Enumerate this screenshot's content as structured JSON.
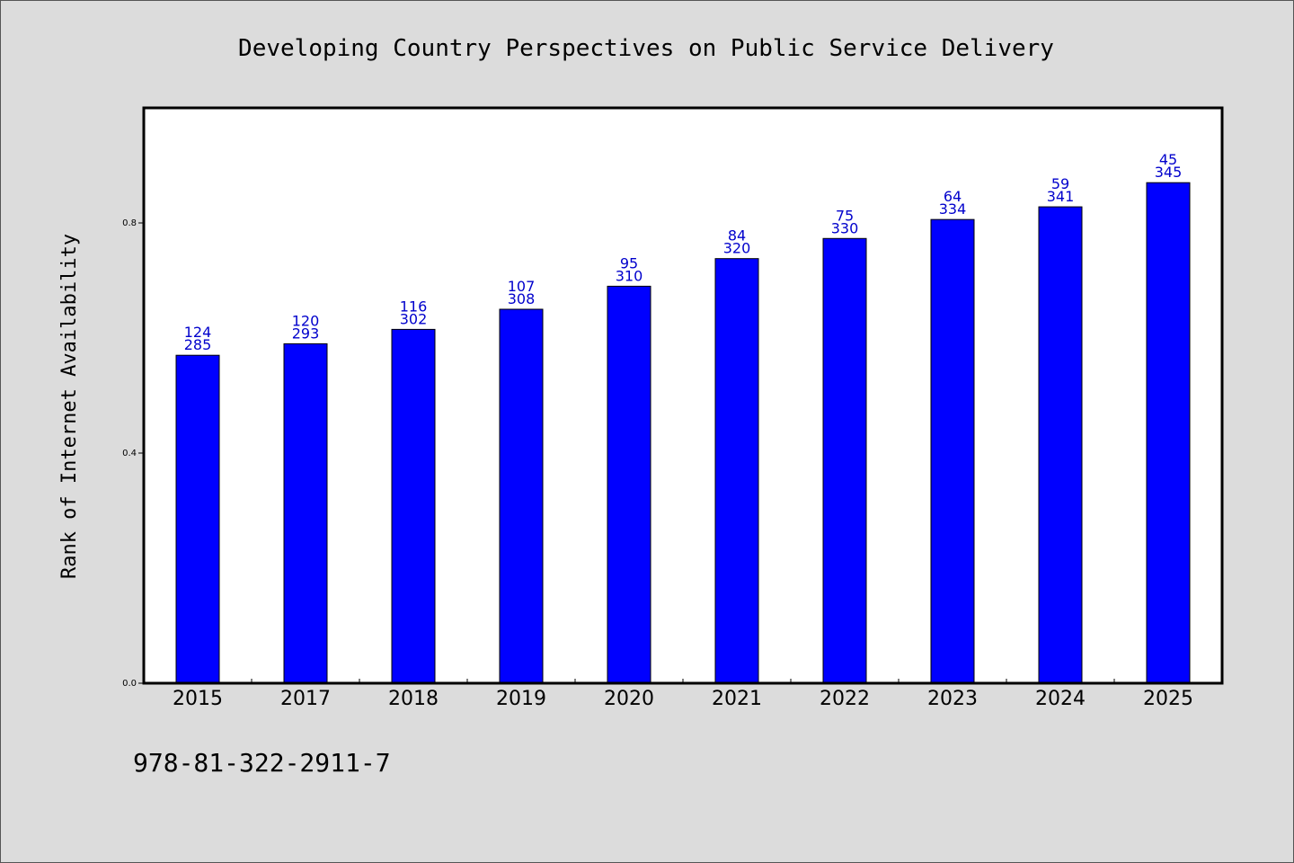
{
  "colors": {
    "background": "#dcdcdc",
    "plot_background": "#ffffff",
    "bar": "#0000ff",
    "bar_edge": "#000000",
    "data_label": "#0000cc"
  },
  "footer": {
    "isbn": "978-81-322-2911-7"
  },
  "chart_data": {
    "type": "bar",
    "title": "Developing Country Perspectives on Public Service Delivery",
    "xlabel": "",
    "ylabel": "Rank of Internet Availability",
    "categories": [
      "2015",
      "2017",
      "2018",
      "2019",
      "2020",
      "2021",
      "2022",
      "2023",
      "2024",
      "2025"
    ],
    "values": [
      0.57,
      0.59,
      0.615,
      0.65,
      0.69,
      0.738,
      0.773,
      0.806,
      0.828,
      0.87
    ],
    "labels_top": [
      "124",
      "120",
      "116",
      "107",
      "95",
      "84",
      "75",
      "64",
      "59",
      "45"
    ],
    "labels_bottom": [
      "285",
      "293",
      "302",
      "308",
      "310",
      "320",
      "330",
      "334",
      "341",
      "345"
    ],
    "ylim": [
      0,
      1.0
    ],
    "yticks": [
      0.0,
      0.4,
      0.8
    ],
    "ytick_labels": [
      "0.0",
      "0.4",
      "0.8"
    ],
    "grid": false,
    "legend": "none"
  }
}
